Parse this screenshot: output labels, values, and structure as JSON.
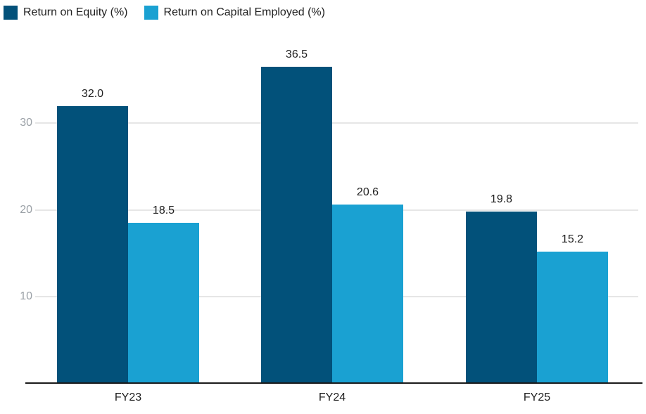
{
  "chart_data": {
    "type": "bar",
    "title": "",
    "xlabel": "",
    "ylabel": "",
    "categories": [
      "FY23",
      "FY24",
      "FY25"
    ],
    "series": [
      {
        "name": "Return on Equity (%)",
        "color": "#02517A",
        "values": [
          32.0,
          36.5,
          19.8
        ]
      },
      {
        "name": "Return on Capital Employed (%)",
        "color": "#1AA1D2",
        "values": [
          18.5,
          20.6,
          15.2
        ]
      }
    ],
    "value_labels": [
      [
        "32.0",
        "36.5",
        "19.8"
      ],
      [
        "18.5",
        "20.6",
        "15.2"
      ]
    ],
    "yticks": [
      10,
      20,
      30
    ],
    "ylim": [
      0,
      40
    ],
    "grid": true,
    "legend_position": "top-left",
    "colors": {
      "grid": "#e6e6e6",
      "axis": "#1a1a1a",
      "tick_label": "#9aa0a6",
      "value_label": "#212121"
    }
  }
}
